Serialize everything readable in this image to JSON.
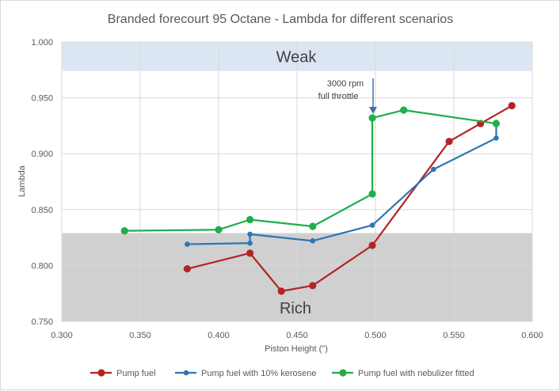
{
  "chart_data": {
    "type": "line",
    "title": "Branded forecourt 95 Octane - Lambda for different scenarios",
    "xlabel": "Piston Height (\")",
    "ylabel": "Lambda",
    "xlim": [
      0.3,
      0.6
    ],
    "ylim": [
      0.75,
      1.0
    ],
    "x_ticks": [
      "0.300",
      "0.350",
      "0.400",
      "0.450",
      "0.500",
      "0.550",
      "0.600"
    ],
    "y_ticks": [
      "0.750",
      "0.800",
      "0.850",
      "0.900",
      "0.950",
      "1.000"
    ],
    "grid": "vertical-and-horizontal",
    "legend_position": "bottom",
    "bands": [
      {
        "label": "Weak",
        "y_from": 0.974,
        "y_to": 1.0,
        "color": "#dce6f2"
      },
      {
        "label": "Rich",
        "y_from": 0.75,
        "y_to": 0.829,
        "color": "#d0d0d0"
      }
    ],
    "annotation": {
      "text_line1": "3000 rpm",
      "text_line2": "full throttle",
      "x": 0.498,
      "y": 0.932
    },
    "series": [
      {
        "name": "Pump fuel",
        "color": "#b42424",
        "marker_size": "large",
        "points": [
          [
            0.38,
            0.797
          ],
          [
            0.42,
            0.811
          ],
          [
            0.44,
            0.777
          ],
          [
            0.46,
            0.782
          ],
          [
            0.498,
            0.818
          ],
          [
            0.547,
            0.911
          ],
          [
            0.567,
            0.927
          ],
          [
            0.587,
            0.943
          ]
        ]
      },
      {
        "name": "Pump fuel with 10% kerosene",
        "color": "#2e75b6",
        "marker_size": "small",
        "points": [
          [
            0.38,
            0.819
          ],
          [
            0.42,
            0.82
          ],
          [
            0.42,
            0.828
          ],
          [
            0.46,
            0.822
          ],
          [
            0.498,
            0.836
          ],
          [
            0.537,
            0.886
          ],
          [
            0.577,
            0.914
          ],
          [
            0.577,
            0.928
          ]
        ]
      },
      {
        "name": "Pump fuel with nebulizer fitted",
        "color": "#1fae4b",
        "marker_size": "large",
        "points": [
          [
            0.34,
            0.831
          ],
          [
            0.4,
            0.832
          ],
          [
            0.42,
            0.841
          ],
          [
            0.46,
            0.835
          ],
          [
            0.498,
            0.864
          ],
          [
            0.498,
            0.932
          ],
          [
            0.518,
            0.939
          ],
          [
            0.577,
            0.927
          ]
        ]
      }
    ]
  }
}
